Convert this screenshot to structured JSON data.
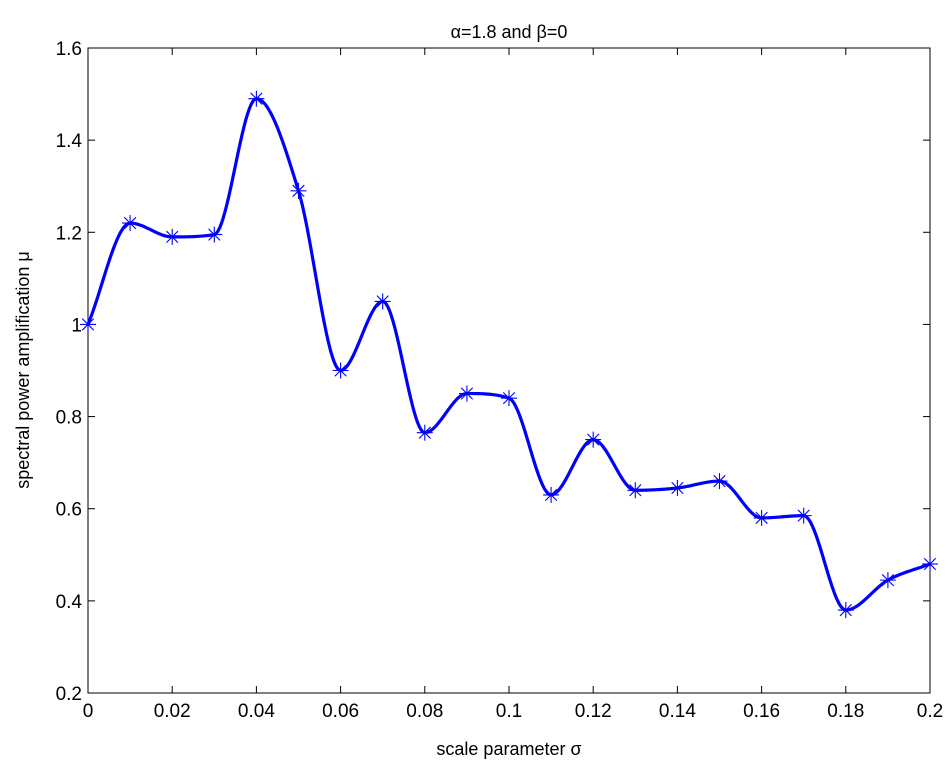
{
  "chart_data": {
    "type": "line",
    "title": "α=1.8 and β=0",
    "xlabel": "scale parameter σ",
    "ylabel": "spectral power amplification μ",
    "xlim": [
      0,
      0.2
    ],
    "ylim": [
      0.2,
      1.6
    ],
    "xticks": [
      "0",
      "0.02",
      "0.04",
      "0.06",
      "0.08",
      "0.1",
      "0.12",
      "0.14",
      "0.16",
      "0.18",
      "0.2"
    ],
    "yticks": [
      "0.2",
      "0.4",
      "0.6",
      "0.8",
      "1",
      "1.2",
      "1.4",
      "1.6"
    ],
    "grid": false,
    "legend": "none",
    "line_color": "#0000ff",
    "marker": "asterisk",
    "series": [
      {
        "x": [
          0,
          0.01,
          0.02,
          0.03,
          0.04,
          0.05,
          0.06,
          0.07,
          0.08,
          0.09,
          0.1,
          0.11,
          0.12,
          0.13,
          0.14,
          0.15,
          0.16,
          0.17,
          0.18,
          0.19,
          0.2
        ],
        "values": [
          1.0,
          1.22,
          1.19,
          1.195,
          1.49,
          1.29,
          0.9,
          1.05,
          0.765,
          0.85,
          0.84,
          0.63,
          0.75,
          0.64,
          0.645,
          0.66,
          0.58,
          0.585,
          0.38,
          0.445,
          0.48
        ]
      }
    ]
  }
}
